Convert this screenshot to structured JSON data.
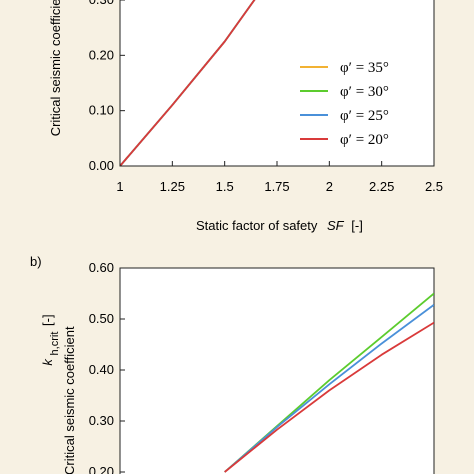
{
  "chart_data": [
    {
      "type": "line",
      "panel_label": "",
      "xlabel": "Static factor of safety",
      "xlabel_symbol": "SF",
      "xlabel_unit": "[-]",
      "ylabel": "Critical seismic coefficient",
      "xlim": [
        1,
        2.5
      ],
      "ylim": [
        0,
        0.3
      ],
      "xticks": [
        "1",
        "1.25",
        "1.5",
        "1.75",
        "2",
        "2.25",
        "2.5"
      ],
      "yticks": [
        "0.00",
        "0.10",
        "0.20",
        "0.30"
      ],
      "legend": "right",
      "series": [
        {
          "name": "φ′ = 35°",
          "color": "#f2b233",
          "x": [
            1,
            1.25,
            1.5,
            1.68
          ],
          "y": [
            0,
            0.11,
            0.225,
            0.32
          ]
        },
        {
          "name": "φ′ = 30°",
          "color": "#5ccc2e",
          "x": [
            1,
            1.25,
            1.5,
            1.68
          ],
          "y": [
            0,
            0.11,
            0.225,
            0.32
          ]
        },
        {
          "name": "φ′ = 25°",
          "color": "#4a90d9",
          "x": [
            1,
            1.25,
            1.5,
            1.68
          ],
          "y": [
            0,
            0.11,
            0.225,
            0.32
          ]
        },
        {
          "name": "φ′ = 20°",
          "color": "#d93a3a",
          "x": [
            1,
            1.25,
            1.5,
            1.68
          ],
          "y": [
            0,
            0.11,
            0.225,
            0.32
          ]
        }
      ]
    },
    {
      "type": "line",
      "panel_label": "b)",
      "ylabel": "Critical seismic coefficient",
      "ylabel_symbol": "k",
      "ylabel_subscript": "h,crit",
      "ylabel_unit": "[-]",
      "xlim": [
        1,
        2.5
      ],
      "ylim": [
        0.2,
        0.6
      ],
      "yticks": [
        "0.60",
        "0.50",
        "0.40",
        "0.30",
        "0.20"
      ],
      "series": [
        {
          "name": "φ′ = 30°",
          "color": "#5ccc2e",
          "x": [
            1.5,
            1.75,
            2,
            2.25,
            2.5
          ],
          "y": [
            0.2,
            0.29,
            0.38,
            0.465,
            0.55
          ]
        },
        {
          "name": "φ′ = 25°",
          "color": "#4a90d9",
          "x": [
            1.5,
            1.75,
            2,
            2.25,
            2.5
          ],
          "y": [
            0.2,
            0.288,
            0.372,
            0.452,
            0.528
          ]
        },
        {
          "name": "φ′ = 20°",
          "color": "#d93a3a",
          "x": [
            1.5,
            1.75,
            2,
            2.25,
            2.5
          ],
          "y": [
            0.2,
            0.283,
            0.36,
            0.43,
            0.493
          ]
        }
      ]
    }
  ]
}
